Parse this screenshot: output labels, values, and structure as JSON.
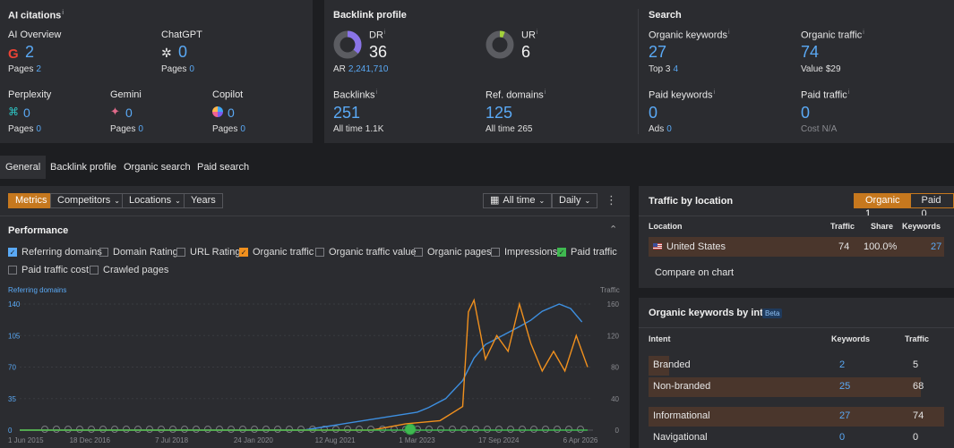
{
  "ai_citations": {
    "title": "AI citations",
    "overview": {
      "label": "AI Overview",
      "value": "2",
      "pages_label": "Pages",
      "pages": "2"
    },
    "chatgpt": {
      "label": "ChatGPT",
      "value": "0",
      "pages_label": "Pages",
      "pages": "0"
    },
    "perplexity": {
      "label": "Perplexity",
      "value": "0",
      "pages_label": "Pages",
      "pages": "0"
    },
    "gemini": {
      "label": "Gemini",
      "value": "0",
      "pages_label": "Pages",
      "pages": "0"
    },
    "copilot": {
      "label": "Copilot",
      "value": "0",
      "pages_label": "Pages",
      "pages": "0"
    }
  },
  "backlink_profile": {
    "title": "Backlink profile",
    "dr": {
      "label": "DR",
      "value": "36",
      "ar_label": "AR",
      "ar": "2,241,710",
      "fill": 0.36
    },
    "ur": {
      "label": "UR",
      "value": "6",
      "fill": 0.06
    },
    "backlinks": {
      "label": "Backlinks",
      "value": "251",
      "all_time_label": "All time",
      "all_time": "1.1K"
    },
    "ref_domains": {
      "label": "Ref. domains",
      "value": "125",
      "all_time_label": "All time",
      "all_time": "265"
    }
  },
  "search": {
    "title": "Search",
    "organic_keywords": {
      "label": "Organic keywords",
      "value": "27",
      "top3_label": "Top 3",
      "top3": "4"
    },
    "organic_traffic": {
      "label": "Organic traffic",
      "value": "74",
      "value_label": "Value",
      "value_amount": "$29"
    },
    "paid_keywords": {
      "label": "Paid keywords",
      "value": "0",
      "ads_label": "Ads",
      "ads": "0"
    },
    "paid_traffic": {
      "label": "Paid traffic",
      "value": "0",
      "cost_label": "Cost",
      "cost": "N/A"
    }
  },
  "tabs": [
    "General",
    "Backlink profile",
    "Organic search",
    "Paid search"
  ],
  "toolbar": {
    "metrics": "Metrics",
    "competitors": "Competitors",
    "locations": "Locations",
    "years": "Years",
    "all_time": "All time",
    "daily": "Daily"
  },
  "performance": {
    "title": "Performance",
    "checkboxes": [
      {
        "label": "Referring domains",
        "checked": true,
        "color": "#5aa9f5"
      },
      {
        "label": "Domain Rating",
        "checked": false
      },
      {
        "label": "URL Rating",
        "checked": false
      },
      {
        "label": "Organic traffic",
        "checked": true,
        "color": "#f0901e"
      },
      {
        "label": "Organic traffic value",
        "checked": false
      },
      {
        "label": "Organic pages",
        "checked": false
      },
      {
        "label": "Impressions",
        "checked": false
      },
      {
        "label": "Paid traffic",
        "checked": true,
        "color": "#3fb950"
      },
      {
        "label": "Paid traffic cost",
        "checked": false
      },
      {
        "label": "Crawled pages",
        "checked": false
      }
    ]
  },
  "chart_data": {
    "type": "line",
    "left_axis_label": "Referring domains",
    "right_axis_label": "Traffic",
    "left_ticks": [
      "140",
      "105",
      "70",
      "35",
      "0"
    ],
    "right_ticks": [
      "160",
      "120",
      "80",
      "40",
      "0"
    ],
    "x_ticks": [
      "1 Jun 2015",
      "18 Dec 2016",
      "7 Jul 2018",
      "24 Jan 2020",
      "12 Aug 2021",
      "1 Mar 2023",
      "17 Sep 2024",
      "6 Apr 2026"
    ],
    "ylim_left": [
      0,
      140
    ],
    "ylim_right": [
      0,
      160
    ],
    "series": [
      {
        "name": "Referring domains",
        "color": "#3d8fe0",
        "axis": "left",
        "x": [
          0,
          0.5,
          0.55,
          0.6,
          0.65,
          0.7,
          0.72,
          0.75,
          0.78,
          0.8,
          0.82,
          0.85,
          0.88,
          0.9,
          0.92,
          0.95,
          0.97,
          0.99
        ],
        "values": [
          0,
          0,
          5,
          10,
          15,
          20,
          25,
          35,
          55,
          80,
          95,
          105,
          115,
          122,
          132,
          140,
          135,
          120
        ]
      },
      {
        "name": "Organic traffic",
        "color": "#f0901e",
        "axis": "right",
        "x": [
          0,
          0.62,
          0.68,
          0.74,
          0.78,
          0.79,
          0.8,
          0.82,
          0.84,
          0.86,
          0.88,
          0.9,
          0.92,
          0.94,
          0.96,
          0.98,
          1.0
        ],
        "values": [
          0,
          0,
          8,
          12,
          30,
          150,
          165,
          90,
          120,
          100,
          160,
          110,
          75,
          100,
          75,
          120,
          80
        ]
      },
      {
        "name": "Paid traffic",
        "color": "#3fb950",
        "axis": "right",
        "x": [
          0,
          1.0
        ],
        "values": [
          0,
          0
        ]
      }
    ]
  },
  "traffic_by_location": {
    "title": "Traffic by location",
    "organic_label": "Organic",
    "organic_count": "1",
    "paid_label": "Paid",
    "paid_count": "0",
    "headers": {
      "location": "Location",
      "traffic": "Traffic",
      "share": "Share",
      "keywords": "Keywords"
    },
    "rows": [
      {
        "location": "United States",
        "traffic": "74",
        "share": "100.0%",
        "keywords": "27"
      }
    ],
    "compare": "Compare on chart"
  },
  "intent": {
    "title": "Organic keywords by intent",
    "beta": "Beta",
    "headers": {
      "intent": "Intent",
      "keywords": "Keywords",
      "traffic": "Traffic"
    },
    "rows": [
      {
        "name": "Branded",
        "keywords": "2",
        "traffic": "5",
        "bar": 0.07
      },
      {
        "name": "Non-branded",
        "keywords": "25",
        "traffic": "68",
        "bar": 0.92
      },
      {
        "name": "Informational",
        "keywords": "27",
        "traffic": "74",
        "bar": 1.0
      },
      {
        "name": "Navigational",
        "keywords": "0",
        "traffic": "0",
        "bar": 0
      }
    ]
  }
}
